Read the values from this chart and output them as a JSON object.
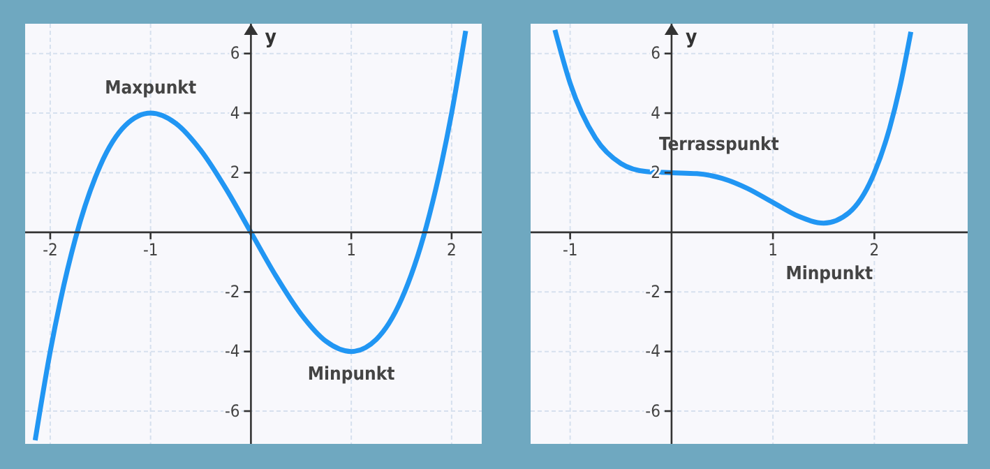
{
  "chart_data": [
    {
      "type": "line",
      "ylabel": "y",
      "xlim": [
        -2.25,
        2.3
      ],
      "ylim": [
        -7.1,
        7.0
      ],
      "xticks": [
        -2,
        -1,
        1,
        2
      ],
      "yticks": [
        -6,
        -4,
        -2,
        2,
        4,
        6
      ],
      "grid": true,
      "marker": "none",
      "line_style": "solid",
      "series": [
        {
          "color": "#2196f3",
          "x": [
            -2.15,
            -2,
            -1.9,
            -1.75,
            -1.5,
            -1.25,
            -1,
            -0.75,
            -0.5,
            -0.25,
            0,
            0.25,
            0.5,
            0.75,
            1,
            1.25,
            1.5,
            1.75,
            1.9,
            2,
            2.14
          ],
          "values": [
            -6.98,
            -4,
            -2.32,
            -0.22,
            2.25,
            3.59,
            4,
            3.66,
            2.75,
            1.47,
            0,
            -1.47,
            -2.75,
            -3.66,
            -4,
            -3.59,
            -2.25,
            0.22,
            2.32,
            4,
            6.76
          ]
        }
      ],
      "annotations": [
        {
          "text": "Maxpunkt",
          "x": -1,
          "y": 4
        },
        {
          "text": "Minpunkt",
          "x": 1,
          "y": -4
        }
      ]
    },
    {
      "type": "line",
      "ylabel": "y",
      "xlim": [
        -1.39,
        2.92
      ],
      "ylim": [
        -7.1,
        7.0
      ],
      "xticks": [
        -1,
        1,
        2
      ],
      "yticks": [
        -6,
        -4,
        -2,
        2,
        4,
        6
      ],
      "grid": true,
      "marker": "none",
      "line_style": "solid",
      "series": [
        {
          "color": "#2196f3",
          "x": [
            -1.15,
            -1,
            -0.75,
            -0.5,
            -0.25,
            0,
            0.25,
            0.5,
            0.75,
            1,
            1.25,
            1.5,
            1.75,
            2,
            2.15,
            2.25,
            2.36
          ],
          "values": [
            6.79,
            5,
            3.16,
            2.31,
            2.04,
            2,
            1.97,
            1.81,
            1.47,
            1,
            0.54,
            0.31,
            0.66,
            2,
            3.49,
            4.85,
            6.73
          ]
        }
      ],
      "annotations": [
        {
          "text": "Terrasspunkt",
          "x": 0,
          "y": 2
        },
        {
          "text": "Minpunkt",
          "x": 1.5,
          "y": 0.31
        }
      ]
    }
  ]
}
